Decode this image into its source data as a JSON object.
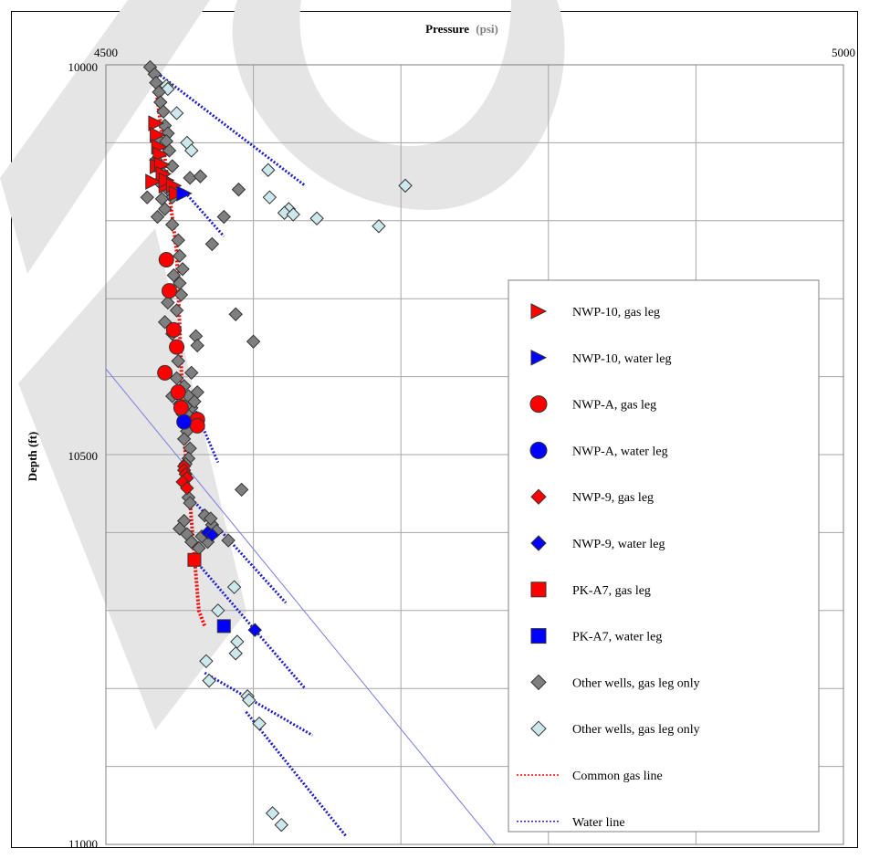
{
  "chart_data": {
    "type": "scatter",
    "xlabel": "Pressure",
    "xlabel_unit": "(psi)",
    "ylabel": "Depth (ft)",
    "x_axis_position": "top",
    "y_axis_inverted": true,
    "xlim": [
      4500,
      5000
    ],
    "ylim": [
      10000,
      11000
    ],
    "x_tick_labels": [
      "4500",
      "5000"
    ],
    "y_tick_labels": [
      "10000",
      "10500",
      "11000"
    ],
    "grid": true,
    "legend_position": "right",
    "colors": {
      "red": "#ff0000",
      "blue": "#0000ff",
      "dark_gray": "#7f7f7f",
      "light_cyan": "#cce8ec",
      "gas_line": "#ff0000",
      "water_line": "#2020cc",
      "thin_line": "#7a7ae0"
    },
    "series": [
      {
        "name": "NWP-10, gas leg",
        "marker": "triangle-right",
        "color": "#ff0000",
        "points": [
          [
            4534,
            10075
          ],
          [
            4535,
            10090
          ],
          [
            4536,
            10105
          ],
          [
            4537,
            10115
          ],
          [
            4535,
            10130
          ],
          [
            4538,
            10128
          ],
          [
            4539,
            10140
          ],
          [
            4541,
            10155
          ],
          [
            4532,
            10150
          ],
          [
            4541,
            10148
          ],
          [
            4546,
            10155
          ],
          [
            4548,
            10165
          ]
        ]
      },
      {
        "name": "NWP-10, water leg",
        "marker": "triangle-right",
        "color": "#0000ff",
        "points": [
          [
            4553,
            10165
          ]
        ]
      },
      {
        "name": "NWP-A, gas leg",
        "marker": "circle",
        "color": "#ff0000",
        "points": [
          [
            4541,
            10250
          ],
          [
            4543,
            10290
          ],
          [
            4546,
            10340
          ],
          [
            4548,
            10362
          ],
          [
            4540,
            10395
          ],
          [
            4549,
            10420
          ],
          [
            4551,
            10440
          ],
          [
            4562,
            10455
          ],
          [
            4562,
            10463
          ]
        ]
      },
      {
        "name": "NWP-A, water leg",
        "marker": "circle",
        "color": "#0000ff",
        "points": [
          [
            4553,
            10458
          ]
        ]
      },
      {
        "name": "NWP-9, gas leg",
        "marker": "diamond",
        "color": "#ff0000",
        "points": [
          [
            4553,
            10515
          ],
          [
            4553,
            10520
          ],
          [
            4554,
            10525
          ],
          [
            4555,
            10530
          ],
          [
            4552,
            10535
          ],
          [
            4555,
            10543
          ]
        ]
      },
      {
        "name": "NWP-9, water leg",
        "marker": "diamond",
        "color": "#0000ff",
        "points": [
          [
            4569,
            10600
          ],
          [
            4572,
            10603
          ],
          [
            4601,
            10725
          ]
        ]
      },
      {
        "name": "PK-A7, gas leg",
        "marker": "square",
        "color": "#ff0000",
        "points": [
          [
            4560,
            10635
          ]
        ]
      },
      {
        "name": "PK-A7, water leg",
        "marker": "square",
        "color": "#0000ff",
        "points": [
          [
            4580,
            10720
          ]
        ]
      },
      {
        "name": "Other wells, gas leg only",
        "marker": "diamond",
        "color": "#7f7f7f",
        "points": [
          [
            4530,
            10003
          ],
          [
            4533,
            10012
          ],
          [
            4534,
            10023
          ],
          [
            4536,
            10035
          ],
          [
            4537,
            10048
          ],
          [
            4539,
            10060
          ],
          [
            4540,
            10078
          ],
          [
            4542,
            10088
          ],
          [
            4535,
            10095
          ],
          [
            4541,
            10098
          ],
          [
            4543,
            10110
          ],
          [
            4534,
            10122
          ],
          [
            4545,
            10130
          ],
          [
            4539,
            10140
          ],
          [
            4536,
            10150
          ],
          [
            4542,
            10160
          ],
          [
            4545,
            10170
          ],
          [
            4538,
            10172
          ],
          [
            4540,
            10185
          ],
          [
            4528,
            10170
          ],
          [
            4535,
            10195
          ],
          [
            4545,
            10205
          ],
          [
            4549,
            10225
          ],
          [
            4550,
            10245
          ],
          [
            4552,
            10262
          ],
          [
            4546,
            10270
          ],
          [
            4550,
            10280
          ],
          [
            4551,
            10295
          ],
          [
            4542,
            10305
          ],
          [
            4548,
            10315
          ],
          [
            4540,
            10330
          ],
          [
            4545,
            10345
          ],
          [
            4561,
            10348
          ],
          [
            4549,
            10380
          ],
          [
            4548,
            10402
          ],
          [
            4553,
            10412
          ],
          [
            4545,
            10425
          ],
          [
            4550,
            10435
          ],
          [
            4552,
            10448
          ],
          [
            4556,
            10458
          ],
          [
            4555,
            10470
          ],
          [
            4553,
            10480
          ],
          [
            4557,
            10492
          ],
          [
            4556,
            10505
          ],
          [
            4554,
            10512
          ],
          [
            4556,
            10555
          ],
          [
            4557,
            10562
          ],
          [
            4553,
            10585
          ],
          [
            4550,
            10595
          ],
          [
            4555,
            10602
          ],
          [
            4558,
            10612
          ],
          [
            4563,
            10620
          ],
          [
            4569,
            10612
          ],
          [
            4565,
            10605
          ],
          [
            4572,
            10590
          ],
          [
            4567,
            10578
          ],
          [
            4571,
            10582
          ],
          [
            4575,
            10598
          ],
          [
            4557,
            10145
          ],
          [
            4564,
            10143
          ],
          [
            4580,
            10195
          ],
          [
            4572,
            10230
          ],
          [
            4588,
            10320
          ],
          [
            4592,
            10545
          ],
          [
            4558,
            10395
          ],
          [
            4562,
            10420
          ],
          [
            4558,
            10440
          ],
          [
            4555,
            10448
          ],
          [
            4554,
            10438
          ],
          [
            4556,
            10425
          ],
          [
            4560,
            10432
          ],
          [
            4562,
            10360
          ],
          [
            4590,
            10160
          ],
          [
            4600,
            10355
          ],
          [
            4583,
            10610
          ]
        ]
      },
      {
        "name": "Other wells, gas leg only",
        "marker": "diamond",
        "color": "#cce8ec",
        "points": [
          [
            4541,
            10027
          ],
          [
            4542,
            10031
          ],
          [
            4548,
            10062
          ],
          [
            4555,
            10100
          ],
          [
            4558,
            10110
          ],
          [
            4610,
            10135
          ],
          [
            4611,
            10170
          ],
          [
            4624,
            10185
          ],
          [
            4621,
            10190
          ],
          [
            4627,
            10192
          ],
          [
            4643,
            10197
          ],
          [
            4685,
            10207
          ],
          [
            4703,
            10155
          ],
          [
            4587,
            10670
          ],
          [
            4576,
            10700
          ],
          [
            4568,
            10765
          ],
          [
            4570,
            10790
          ],
          [
            4589,
            10740
          ],
          [
            4588,
            10755
          ],
          [
            4596,
            10810
          ],
          [
            4597,
            10815
          ],
          [
            4604,
            10845
          ],
          [
            4613,
            10960
          ],
          [
            4619,
            10975
          ]
        ]
      }
    ],
    "lines": [
      {
        "name": "Common gas line",
        "style": "dotted",
        "color": "#ff0000",
        "points": [
          [
            4532,
            10000
          ],
          [
            4548,
            10240
          ],
          [
            4553,
            10480
          ],
          [
            4557,
            10560
          ],
          [
            4563,
            10700
          ],
          [
            4567,
            10720
          ]
        ]
      },
      {
        "name": "Water line",
        "style": "dotted",
        "color": "#2020cc"
      }
    ]
  },
  "legend": {
    "items": [
      {
        "label": "NWP-10, gas leg",
        "marker": "triangle-right",
        "color": "#ff0000"
      },
      {
        "label": "NWP-10, water leg",
        "marker": "triangle-right",
        "color": "#0000ff"
      },
      {
        "label": "NWP-A, gas leg",
        "marker": "circle",
        "color": "#ff0000"
      },
      {
        "label": "NWP-A, water leg",
        "marker": "circle",
        "color": "#0000ff"
      },
      {
        "label": "NWP-9, gas leg",
        "marker": "diamond",
        "color": "#ff0000"
      },
      {
        "label": "NWP-9, water leg",
        "marker": "diamond",
        "color": "#0000ff"
      },
      {
        "label": "PK-A7, gas leg",
        "marker": "square",
        "color": "#ff0000"
      },
      {
        "label": "PK-A7, water leg",
        "marker": "square",
        "color": "#0000ff"
      },
      {
        "label": "Other wells, gas leg only",
        "marker": "diamond",
        "color": "#7f7f7f"
      },
      {
        "label": "Other wells, gas leg only",
        "marker": "diamond",
        "color": "#cce8ec"
      },
      {
        "label": "Common gas line",
        "marker": "dotted-line",
        "color": "#ff0000"
      },
      {
        "label": "Water line",
        "marker": "dotted-line",
        "color": "#2020cc"
      }
    ]
  },
  "watermark": {
    "text": "IS",
    "color": "#e5e5e5"
  }
}
